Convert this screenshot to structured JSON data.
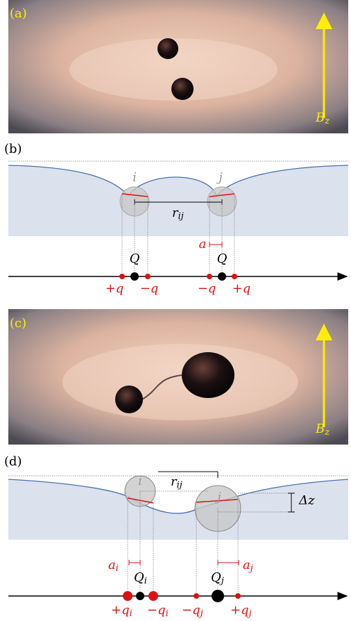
{
  "a": {
    "label": "(a)",
    "field": [
      "B",
      "z"
    ]
  },
  "b": {
    "label": "(b)",
    "particles": [
      "i",
      "j"
    ],
    "distance": [
      "r",
      "ij"
    ],
    "radius": "a",
    "charges": [
      "Q",
      "Q"
    ],
    "poles": [
      "+q",
      "−q",
      "−q",
      "+q"
    ]
  },
  "c": {
    "label": "(c)",
    "field": [
      "B",
      "z"
    ]
  },
  "d": {
    "label": "(d)",
    "particles": [
      "i",
      "j"
    ],
    "distance": [
      "r",
      "ij"
    ],
    "height": "Δz",
    "radii": [
      [
        "a",
        "i"
      ],
      [
        "a",
        "j"
      ]
    ],
    "charges": [
      [
        "Q",
        "i"
      ],
      [
        "Q",
        "j"
      ]
    ],
    "poles": [
      [
        "+q",
        "i"
      ],
      [
        "−q",
        "i"
      ],
      [
        "−q",
        "j"
      ],
      [
        "+q",
        "j"
      ]
    ]
  }
}
